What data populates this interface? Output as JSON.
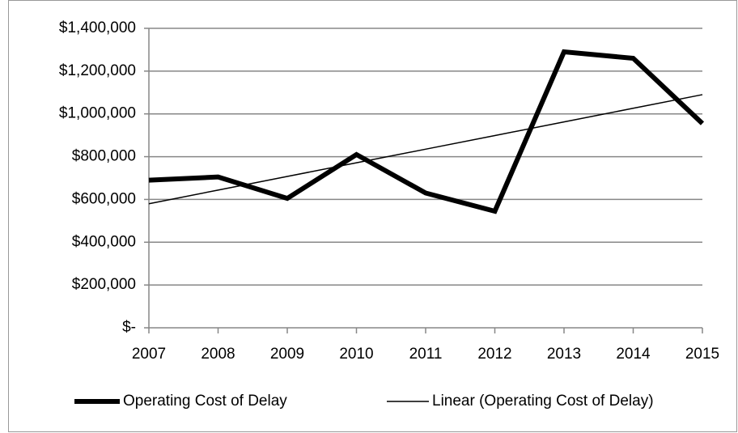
{
  "chart_data": {
    "type": "line",
    "categories": [
      "2007",
      "2008",
      "2009",
      "2010",
      "2011",
      "2012",
      "2013",
      "2014",
      "2015"
    ],
    "series": [
      {
        "name": "Operating Cost of Delay",
        "color": "#000000",
        "width": 6,
        "values": [
          690000,
          705000,
          605000,
          810000,
          630000,
          545000,
          1290000,
          1260000,
          955000
        ]
      },
      {
        "name": "Linear (Operating Cost of Delay)",
        "color": "#000000",
        "width": 1.5,
        "values": [
          580000,
          643750,
          707500,
          771250,
          835000,
          898750,
          962500,
          1026250,
          1090000
        ]
      }
    ],
    "ylim": [
      0,
      1400000
    ],
    "yticks": [
      {
        "value": 0,
        "label": "$-"
      },
      {
        "value": 200000,
        "label": "$200,000"
      },
      {
        "value": 400000,
        "label": "$400,000"
      },
      {
        "value": 600000,
        "label": "$600,000"
      },
      {
        "value": 800000,
        "label": "$800,000"
      },
      {
        "value": 1000000,
        "label": "$1,000,000"
      },
      {
        "value": 1200000,
        "label": "$1,200,000"
      },
      {
        "value": 1400000,
        "label": "$1,400,000"
      }
    ],
    "grid": true,
    "legend": "bottom"
  }
}
